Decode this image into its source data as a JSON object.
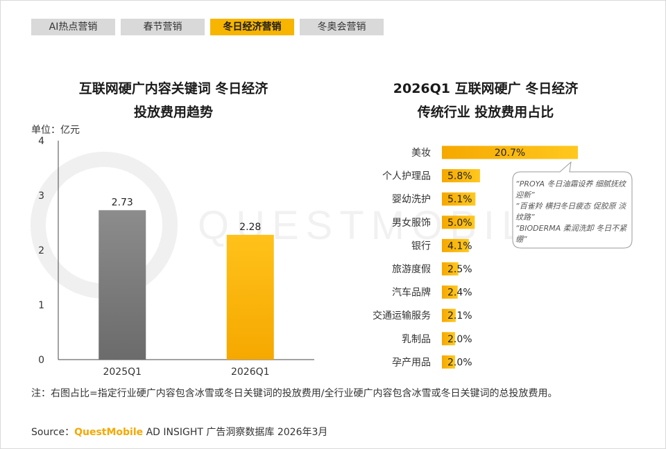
{
  "tabs": [
    {
      "label": "AI热点营销",
      "active": false
    },
    {
      "label": "春节营销",
      "active": false
    },
    {
      "label": "冬日经济营销",
      "active": true
    },
    {
      "label": "冬奥会营销",
      "active": false
    }
  ],
  "left": {
    "title_line1": "互联网硬广内容关键词 冬日经济",
    "title_line2": "投放费用趋势",
    "unit": "单位：亿元"
  },
  "right": {
    "title_line1": "2026Q1 互联网硬广 冬日经济",
    "title_line2": "传统行业 投放费用占比"
  },
  "callout": {
    "lines": [
      "“PROYA 冬日油霜设养 细腻抚纹迎新”",
      "“百雀羚 横扫冬日疲态 促胶原 淡纹路”",
      "“BIODERMA 柔润洗卸 冬日不紧绷”"
    ]
  },
  "note": "注：右图占比=指定行业硬广内容包含冰雪或冬日关键词的投放费用/全行业硬广内容包含冰雪或冬日关键词的总投放费用。",
  "source": {
    "prefix": "Source：",
    "brand": "QuestMobile",
    "rest": " AD INSIGHT 广告洞察数据库 2026年3月"
  },
  "watermark_text": "QUESTMOBILE",
  "colors": {
    "accent": "#f7b500",
    "grey_bar": "#7f7f7f",
    "tab_bg": "#d9d9d9"
  },
  "chart_data": [
    {
      "type": "bar",
      "categories": [
        "2025Q1",
        "2026Q1"
      ],
      "values": [
        2.73,
        2.28
      ],
      "data_labels": [
        "2.73",
        "2.28"
      ],
      "bar_colors": [
        "#7f7f7f",
        "#f7b500"
      ],
      "ylim": [
        0,
        4
      ],
      "yticks": [
        0,
        1,
        2,
        3,
        4
      ],
      "grid": false
    },
    {
      "type": "bar",
      "orientation": "horizontal",
      "categories": [
        "美妆",
        "个人护理品",
        "婴幼洗护",
        "男女服饰",
        "银行",
        "旅游度假",
        "汽车品牌",
        "交通运输服务",
        "乳制品",
        "孕产用品"
      ],
      "values": [
        20.7,
        5.8,
        5.1,
        5.0,
        4.1,
        2.5,
        2.4,
        2.1,
        2.0,
        2.0
      ],
      "data_labels": [
        "20.7%",
        "5.8%",
        "5.1%",
        "5.0%",
        "4.1%",
        "2.5%",
        "2.4%",
        "2.1%",
        "2.0%",
        "2.0%"
      ],
      "unit": "%",
      "grid": false
    }
  ]
}
